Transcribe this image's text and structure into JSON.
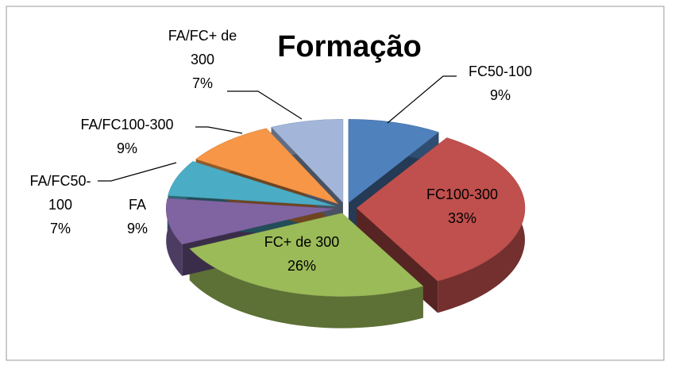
{
  "chart_data": {
    "type": "pie",
    "title": "Formação",
    "categories": [
      "FC50-100",
      "FC100-300",
      "FC+ de 300",
      "FA",
      "FA/FC50-100",
      "FA/FC100-300",
      "FA/FC+ de 300"
    ],
    "values": [
      9,
      33,
      26,
      9,
      7,
      9,
      7
    ],
    "value_labels": [
      "9%",
      "33%",
      "26%",
      "9%",
      "7%",
      "9%",
      "7%"
    ],
    "colors": [
      "#4f81bd",
      "#c0504d",
      "#9bbb59",
      "#8064a2",
      "#4bacc6",
      "#f79646",
      "#a3b6da"
    ]
  }
}
